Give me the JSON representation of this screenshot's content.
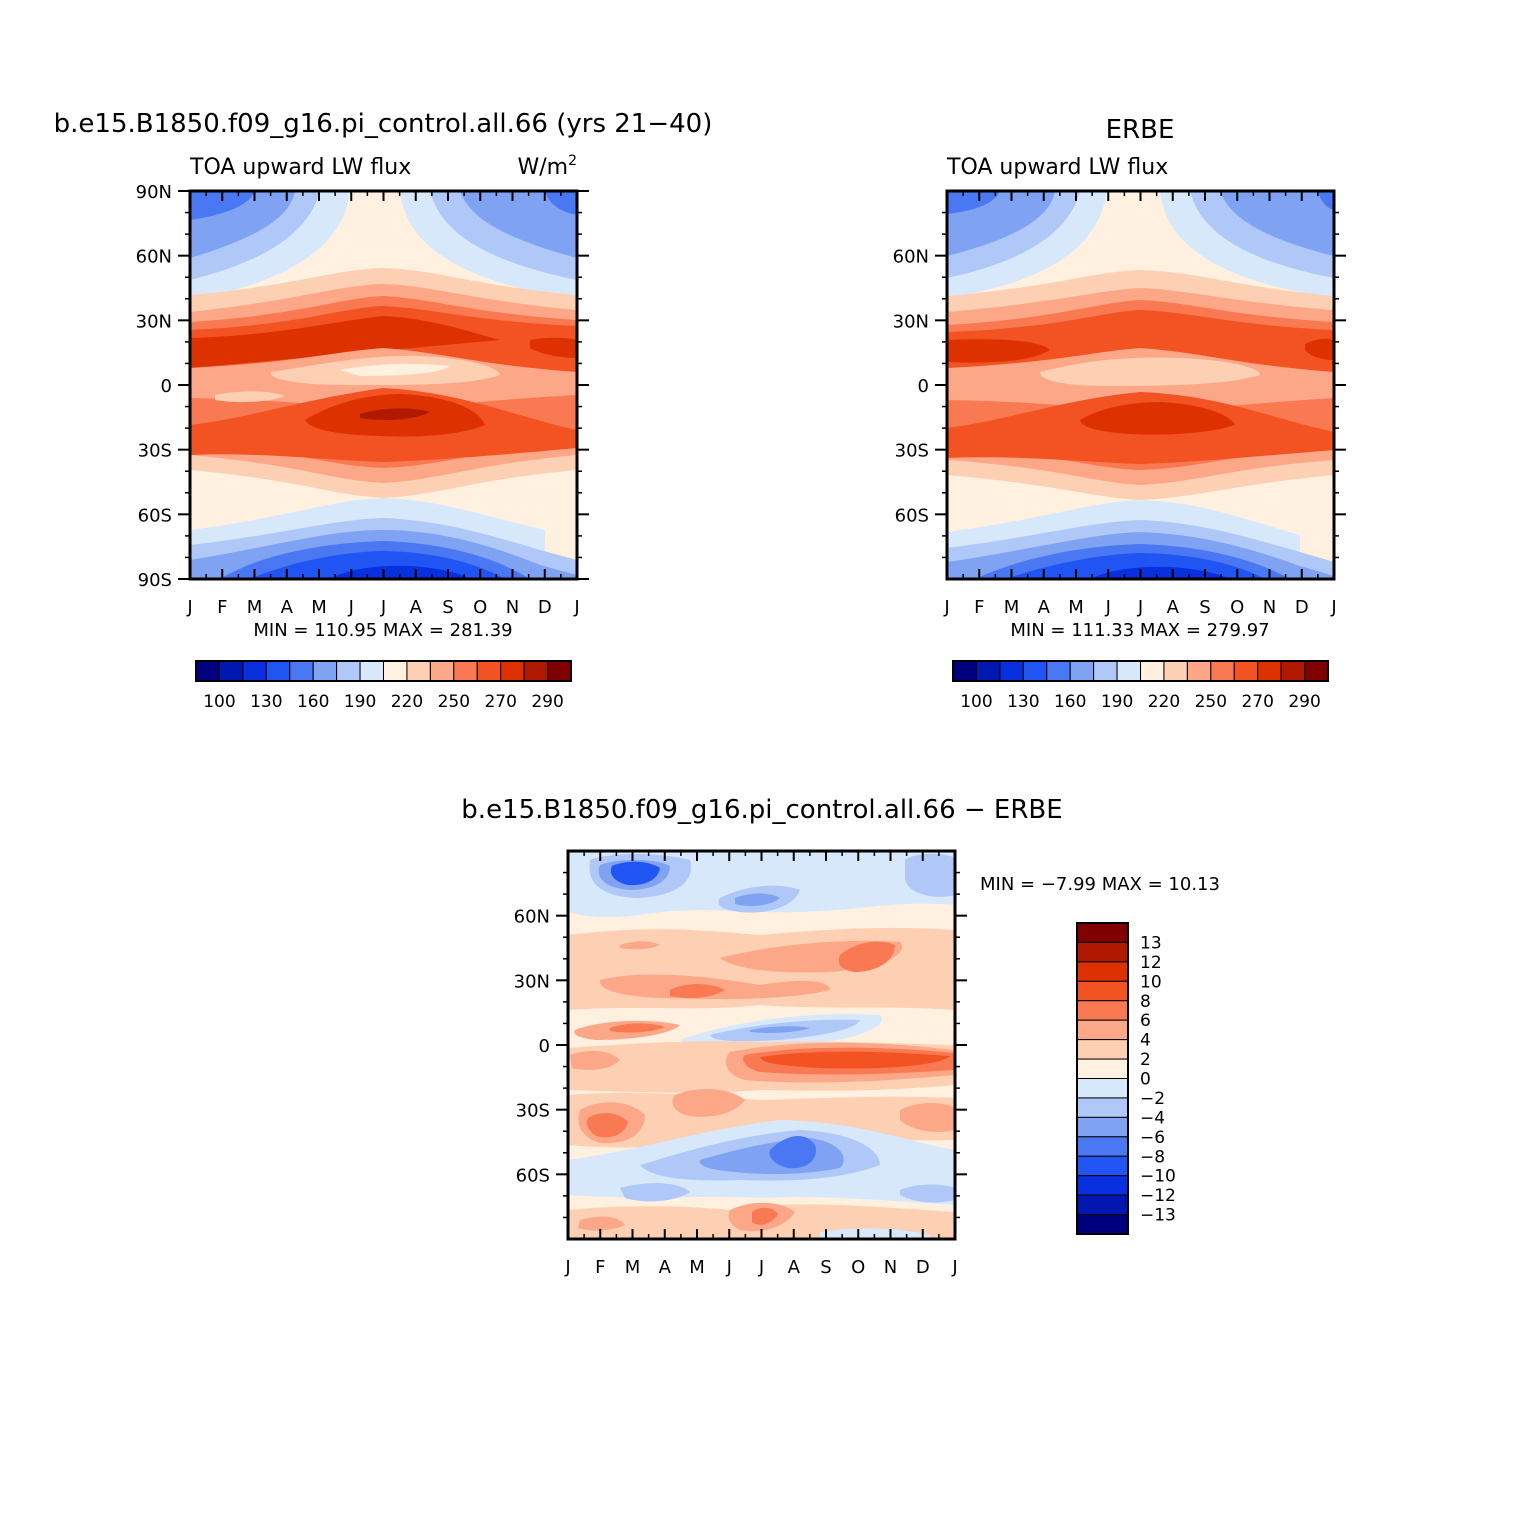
{
  "chart_data": [
    {
      "type": "heatmap",
      "title": "b.e15.B1850.f09_g16.pi_control.all.66 (yrs 21−40)",
      "subtitle_left": "TOA upward LW flux",
      "subtitle_right_base": "W/m",
      "subtitle_right_sup": "2",
      "x_ticks": [
        "J",
        "F",
        "M",
        "A",
        "M",
        "J",
        "J",
        "A",
        "S",
        "O",
        "N",
        "D",
        "J"
      ],
      "y_ticks": [
        "90N",
        "60N",
        "30N",
        "0",
        "30S",
        "60S",
        "90S"
      ],
      "ylim": [
        -90,
        90
      ],
      "stats": "MIN = 110.95 MAX = 281.39",
      "min": 110.95,
      "max": 281.39,
      "colorbar": {
        "labels": [
          "100",
          "130",
          "160",
          "190",
          "220",
          "250",
          "270",
          "290"
        ],
        "colors": [
          "#00007f",
          "#0017b0",
          "#0830df",
          "#2055f4",
          "#4a78f2",
          "#7fa2f2",
          "#b0c8f7",
          "#d8e8fb",
          "#fff0e0",
          "#fdd0b4",
          "#fca888",
          "#f97a52",
          "#f35222",
          "#dd3200",
          "#b01800",
          "#7f0000"
        ]
      }
    },
    {
      "type": "heatmap",
      "title": "ERBE",
      "subtitle_left": "TOA upward LW flux",
      "x_ticks": [
        "J",
        "F",
        "M",
        "A",
        "M",
        "J",
        "J",
        "A",
        "S",
        "O",
        "N",
        "D",
        "J"
      ],
      "y_ticks": [
        "60N",
        "30N",
        "0",
        "30S",
        "60S"
      ],
      "ylim": [
        -90,
        90
      ],
      "stats": "MIN = 111.33 MAX = 279.97",
      "min": 111.33,
      "max": 279.97,
      "colorbar": {
        "labels": [
          "100",
          "130",
          "160",
          "190",
          "220",
          "250",
          "270",
          "290"
        ],
        "colors": [
          "#00007f",
          "#0017b0",
          "#0830df",
          "#2055f4",
          "#4a78f2",
          "#7fa2f2",
          "#b0c8f7",
          "#d8e8fb",
          "#fff0e0",
          "#fdd0b4",
          "#fca888",
          "#f97a52",
          "#f35222",
          "#dd3200",
          "#b01800",
          "#7f0000"
        ]
      }
    },
    {
      "type": "heatmap",
      "title": "b.e15.B1850.f09_g16.pi_control.all.66 − ERBE",
      "x_ticks": [
        "J",
        "F",
        "M",
        "A",
        "M",
        "J",
        "J",
        "A",
        "S",
        "O",
        "N",
        "D",
        "J"
      ],
      "y_ticks": [
        "60N",
        "30N",
        "0",
        "30S",
        "60S"
      ],
      "ylim": [
        -90,
        90
      ],
      "stats": "MIN =  −7.99 MAX =  10.13",
      "min": -7.99,
      "max": 10.13,
      "colorbar": {
        "labels": [
          "13",
          "12",
          "10",
          "8",
          "6",
          "4",
          "2",
          "0",
          "−2",
          "−4",
          "−6",
          "−8",
          "−10",
          "−12",
          "−13"
        ],
        "colors": [
          "#7f0000",
          "#b01800",
          "#dd3200",
          "#f35222",
          "#f97a52",
          "#fca888",
          "#fdd0b4",
          "#fff0e0",
          "#d8e8fb",
          "#b0c8f7",
          "#7fa2f2",
          "#4a78f2",
          "#2055f4",
          "#0830df",
          "#0017b0",
          "#00007f"
        ]
      }
    }
  ]
}
